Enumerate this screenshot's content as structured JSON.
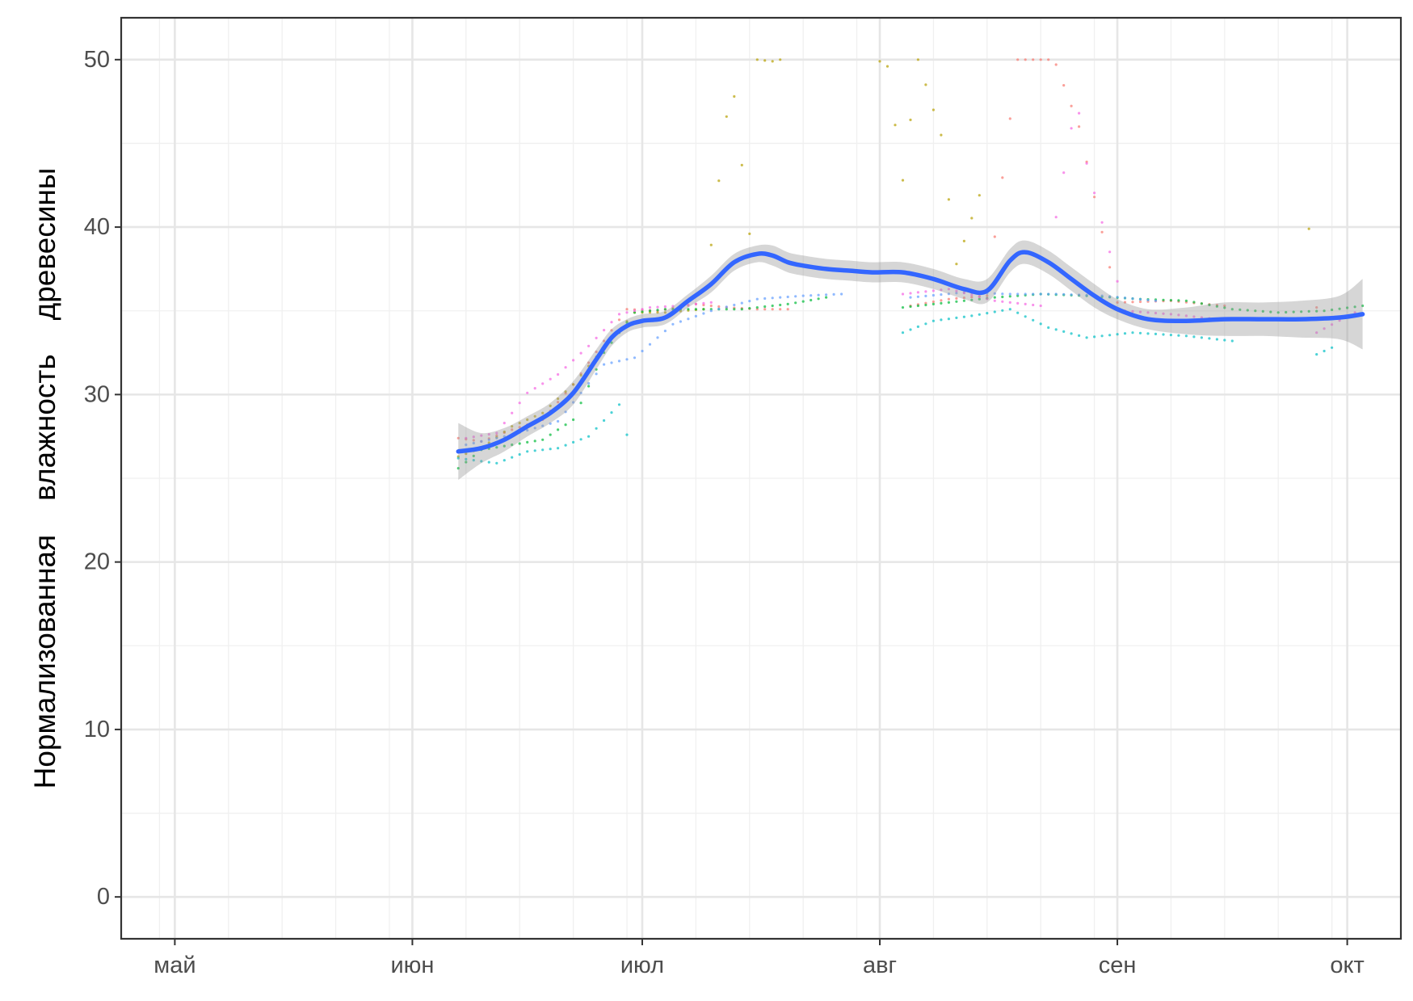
{
  "chart_data": {
    "type": "line",
    "title": "",
    "xlabel": "",
    "ylabel": "Нормализованная влажность древесины",
    "ylabel_words": [
      "Нормализованная",
      "влажность",
      "древесины"
    ],
    "xlim": [
      "2023-04-24",
      "2023-10-08"
    ],
    "ylim": [
      -2.5,
      52.5
    ],
    "x_ticks": [
      {
        "date": "2023-05-01",
        "label": "май"
      },
      {
        "date": "2023-06-01",
        "label": "июн"
      },
      {
        "date": "2023-07-01",
        "label": "июл"
      },
      {
        "date": "2023-08-01",
        "label": "авг"
      },
      {
        "date": "2023-09-01",
        "label": "сен"
      },
      {
        "date": "2023-10-01",
        "label": "окт"
      }
    ],
    "y_ticks": [
      0,
      10,
      20,
      30,
      40,
      50
    ],
    "grid": true,
    "legend": "none",
    "colors": {
      "smooth": "#3366FF",
      "ribbon": "#999999",
      "series": [
        "#F8766D",
        "#B79F00",
        "#00BA38",
        "#00BFC4",
        "#619CFF",
        "#F564E3"
      ]
    },
    "smooth": {
      "x": [
        "2023-06-07",
        "2023-06-10",
        "2023-06-13",
        "2023-06-16",
        "2023-06-19",
        "2023-06-22",
        "2023-06-25",
        "2023-06-27",
        "2023-06-29",
        "2023-07-01",
        "2023-07-04",
        "2023-07-07",
        "2023-07-10",
        "2023-07-13",
        "2023-07-16",
        "2023-07-18",
        "2023-07-20",
        "2023-07-22",
        "2023-07-25",
        "2023-07-28",
        "2023-07-31",
        "2023-08-04",
        "2023-08-08",
        "2023-08-12",
        "2023-08-15",
        "2023-08-18",
        "2023-08-20",
        "2023-08-23",
        "2023-08-26",
        "2023-08-29",
        "2023-09-01",
        "2023-09-05",
        "2023-09-10",
        "2023-09-15",
        "2023-09-20",
        "2023-09-25",
        "2023-09-30",
        "2023-10-03"
      ],
      "y": [
        26.6,
        26.8,
        27.3,
        28.1,
        28.9,
        30.1,
        32.1,
        33.4,
        34.1,
        34.4,
        34.6,
        35.6,
        36.6,
        37.9,
        38.4,
        38.3,
        37.9,
        37.7,
        37.5,
        37.4,
        37.3,
        37.3,
        36.9,
        36.3,
        36.2,
        38.0,
        38.5,
        37.9,
        36.9,
        35.9,
        35.1,
        34.5,
        34.4,
        34.5,
        34.5,
        34.5,
        34.6,
        34.8
      ],
      "lower": [
        24.9,
        25.9,
        26.6,
        27.5,
        28.3,
        29.4,
        31.5,
        32.9,
        33.7,
        34.0,
        34.2,
        35.2,
        36.1,
        37.4,
        37.9,
        37.7,
        37.3,
        37.1,
        36.9,
        36.8,
        36.7,
        36.7,
        36.3,
        35.7,
        35.5,
        37.3,
        37.8,
        37.2,
        36.2,
        35.2,
        34.5,
        33.9,
        33.6,
        33.5,
        33.5,
        33.4,
        33.3,
        32.7
      ],
      "upper": [
        28.3,
        27.7,
        28.0,
        28.7,
        29.5,
        30.8,
        32.7,
        33.9,
        34.5,
        34.8,
        35.0,
        36.0,
        37.1,
        38.4,
        38.9,
        38.9,
        38.5,
        38.3,
        38.1,
        38.0,
        37.9,
        37.9,
        37.5,
        36.9,
        36.9,
        38.7,
        39.2,
        38.6,
        37.6,
        36.6,
        35.7,
        35.1,
        35.2,
        35.5,
        35.5,
        35.6,
        35.9,
        36.9
      ]
    },
    "points": [
      {
        "name": "",
        "x": [
          "2023-06-07",
          "2023-06-10",
          "2023-06-14",
          "2023-06-18",
          "2023-06-22",
          "2023-06-26",
          "2023-06-29",
          "2023-07-03",
          "2023-07-08",
          "2023-07-12",
          "2023-07-16",
          "2023-07-20",
          "2023-08-05",
          "2023-08-10",
          "2023-08-15",
          "2023-08-19",
          "2023-08-21",
          "2023-08-22",
          "2023-08-23",
          "2023-08-24",
          "2023-08-27",
          "2023-09-01",
          "2023-09-08",
          "2023-09-15",
          "2023-09-27"
        ],
        "y": [
          27.4,
          27.2,
          27.9,
          28.5,
          30.6,
          33.2,
          35.1,
          35.0,
          35.4,
          35.2,
          35.1,
          35.1,
          35.3,
          35.7,
          35.9,
          50.0,
          50.0,
          50.0,
          50.0,
          49.7,
          46.0,
          35.5,
          35.6,
          35.3,
          35.2
        ]
      },
      {
        "name": "",
        "x": [
          "2023-06-07",
          "2023-06-10",
          "2023-06-14",
          "2023-06-18",
          "2023-06-22",
          "2023-06-26",
          "2023-06-30",
          "2023-07-04",
          "2023-07-09",
          "2023-07-12",
          "2023-07-13",
          "2023-07-15",
          "2023-07-16",
          "2023-07-18",
          "2023-07-19",
          "2023-08-01",
          "2023-08-02",
          "2023-08-03",
          "2023-08-04",
          "2023-08-06",
          "2023-08-07",
          "2023-08-09",
          "2023-08-11",
          "2023-08-14",
          "2023-09-26"
        ],
        "y": [
          26.3,
          26.8,
          28.1,
          28.9,
          30.6,
          32.8,
          34.9,
          34.9,
          35.1,
          46.6,
          47.8,
          39.6,
          50.0,
          49.9,
          50.0,
          49.9,
          49.6,
          46.1,
          42.8,
          50.0,
          48.5,
          45.5,
          37.8,
          41.9,
          39.9
        ]
      },
      {
        "name": "",
        "x": [
          "2023-06-07",
          "2023-06-10",
          "2023-06-14",
          "2023-06-18",
          "2023-06-22",
          "2023-06-26",
          "2023-06-30",
          "2023-07-04",
          "2023-07-09",
          "2023-07-14",
          "2023-07-20",
          "2023-07-25",
          "2023-08-04",
          "2023-08-10",
          "2023-08-16",
          "2023-08-22",
          "2023-08-28",
          "2023-09-04",
          "2023-09-10",
          "2023-09-16",
          "2023-09-22",
          "2023-09-28",
          "2023-10-03"
        ],
        "y": [
          25.6,
          26.7,
          27.0,
          27.3,
          28.5,
          32.5,
          34.9,
          35.1,
          35.1,
          35.1,
          35.4,
          35.8,
          35.2,
          35.5,
          35.8,
          36.0,
          35.9,
          35.7,
          35.6,
          35.1,
          34.9,
          35.0,
          35.3
        ]
      },
      {
        "name": "",
        "x": [
          "2023-06-07",
          "2023-06-12",
          "2023-06-16",
          "2023-06-20",
          "2023-06-24",
          "2023-06-28",
          "2023-06-29",
          "2023-08-04",
          "2023-08-08",
          "2023-08-13",
          "2023-08-18",
          "2023-08-23",
          "2023-08-28",
          "2023-09-03",
          "2023-09-10",
          "2023-09-16",
          "2023-09-27",
          "2023-09-29"
        ],
        "y": [
          26.2,
          25.9,
          26.6,
          26.8,
          27.5,
          29.4,
          27.6,
          33.7,
          34.4,
          34.7,
          35.1,
          34.0,
          33.4,
          33.7,
          33.5,
          33.2,
          32.4,
          32.8
        ]
      },
      {
        "name": "",
        "x": [
          "2023-06-08",
          "2023-06-14",
          "2023-06-20",
          "2023-06-26",
          "2023-06-30",
          "2023-07-05",
          "2023-07-10",
          "2023-07-16",
          "2023-07-22",
          "2023-07-27",
          "2023-08-05",
          "2023-08-12",
          "2023-08-18",
          "2023-08-24",
          "2023-08-30",
          "2023-09-06"
        ],
        "y": [
          27.0,
          27.6,
          28.4,
          31.8,
          32.2,
          34.2,
          35.0,
          35.7,
          35.9,
          36.0,
          35.8,
          36.1,
          36.0,
          36.0,
          35.9,
          35.6
        ]
      },
      {
        "name": "",
        "x": [
          "2023-06-08",
          "2023-06-12",
          "2023-06-16",
          "2023-06-20",
          "2023-06-24",
          "2023-06-28",
          "2023-07-02",
          "2023-07-06",
          "2023-07-10",
          "2023-08-04",
          "2023-08-10",
          "2023-08-16",
          "2023-08-22",
          "2023-08-26",
          "2023-08-27",
          "2023-08-28",
          "2023-09-02",
          "2023-09-08",
          "2023-09-14",
          "2023-09-27",
          "2023-10-02"
        ],
        "y": [
          27.4,
          27.7,
          30.1,
          31.2,
          32.9,
          34.8,
          35.2,
          35.3,
          35.5,
          36.0,
          36.3,
          35.6,
          35.3,
          45.9,
          46.8,
          43.8,
          35.0,
          34.8,
          34.5,
          33.7,
          34.9
        ]
      }
    ]
  }
}
